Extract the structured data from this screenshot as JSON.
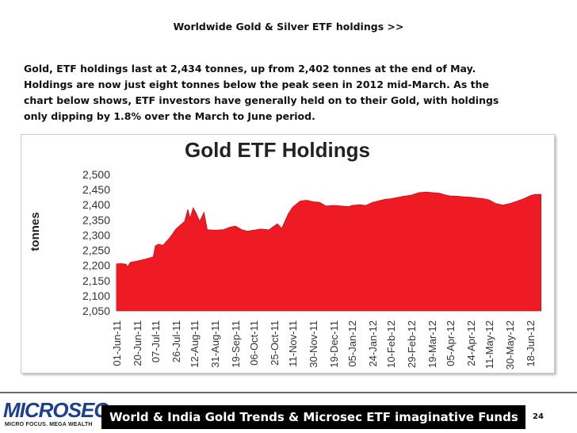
{
  "header": {
    "title": "Worldwide Gold & Silver ETF holdings >>"
  },
  "body": {
    "lines": [
      "Gold, ETF holdings last at 2,434 tonnes, up from 2,402 tonnes at the end of May.",
      "Holdings are now just eight tonnes below the peak seen in 2012 mid-March. As the",
      "chart below shows, ETF investors have generally held on to their Gold, with holdings",
      "only dipping by 1.8% over the March to June period."
    ]
  },
  "footer": {
    "logo_text": "MICROSEC",
    "logo_tagline": "MICRO FOCUS. MEGA WEALTH",
    "title": "World & India Gold Trends & Microsec ETF imaginative Funds",
    "page_number": "24"
  },
  "colors": {
    "fill": "#ee1b24",
    "footer_bg": "#000000",
    "logo": "#1d3f8f"
  },
  "chart_data": {
    "type": "area",
    "title": "Gold ETF Holdings",
    "xlabel": "",
    "ylabel": "tonnes",
    "ylim": [
      2050,
      2500
    ],
    "yticks": [
      "2,500",
      "2,450",
      "2,400",
      "2,350",
      "2,300",
      "2,250",
      "2,200",
      "2,150",
      "2,100",
      "2,050"
    ],
    "xticks": [
      "01-Jun-11",
      "20-Jun-11",
      "07-Jul-11",
      "26-Jul-11",
      "12-Aug-11",
      "31-Aug-11",
      "19-Sep-11",
      "06-Oct-11",
      "25-Oct-11",
      "11-Nov-11",
      "30-Nov-11",
      "19-Dec-11",
      "05-Jan-12",
      "24-Jan-12",
      "10-Feb-12",
      "29-Feb-12",
      "19-Mar-12",
      "05-Apr-12",
      "24-Apr-12",
      "11-May-12",
      "30-May-12",
      "18-Jun-12"
    ],
    "grid": false,
    "points": [
      [
        "01-Jun-11",
        2205
      ],
      [
        "05-Jun-11",
        2206
      ],
      [
        "10-Jun-11",
        2204
      ],
      [
        "11-Jun-11",
        2195
      ],
      [
        "14-Jun-11",
        2210
      ],
      [
        "20-Jun-11",
        2214
      ],
      [
        "27-Jun-11",
        2220
      ],
      [
        "05-Jul-11",
        2228
      ],
      [
        "07-Jul-11",
        2265
      ],
      [
        "10-Jul-11",
        2270
      ],
      [
        "14-Jul-11",
        2266
      ],
      [
        "20-Jul-11",
        2290
      ],
      [
        "26-Jul-11",
        2320
      ],
      [
        "03-Aug-11",
        2345
      ],
      [
        "06-Aug-11",
        2385
      ],
      [
        "08-Aug-11",
        2355
      ],
      [
        "11-Aug-11",
        2390
      ],
      [
        "14-Aug-11",
        2370
      ],
      [
        "17-Aug-11",
        2345
      ],
      [
        "21-Aug-11",
        2375
      ],
      [
        "24-Aug-11",
        2318
      ],
      [
        "31-Aug-11",
        2316
      ],
      [
        "08-Sep-11",
        2318
      ],
      [
        "14-Sep-11",
        2326
      ],
      [
        "19-Sep-11",
        2330
      ],
      [
        "25-Sep-11",
        2318
      ],
      [
        "30-Sep-11",
        2313
      ],
      [
        "06-Oct-11",
        2316
      ],
      [
        "13-Oct-11",
        2320
      ],
      [
        "20-Oct-11",
        2317
      ],
      [
        "25-Oct-11",
        2330
      ],
      [
        "28-Oct-11",
        2337
      ],
      [
        "01-Nov-11",
        2322
      ],
      [
        "07-Nov-11",
        2370
      ],
      [
        "11-Nov-11",
        2392
      ],
      [
        "18-Nov-11",
        2412
      ],
      [
        "24-Nov-11",
        2415
      ],
      [
        "30-Nov-11",
        2410
      ],
      [
        "06-Dec-11",
        2408
      ],
      [
        "12-Dec-11",
        2396
      ],
      [
        "19-Dec-11",
        2398
      ],
      [
        "26-Dec-11",
        2396
      ],
      [
        "02-Jan-12",
        2394
      ],
      [
        "05-Jan-12",
        2398
      ],
      [
        "12-Jan-12",
        2400
      ],
      [
        "18-Jan-12",
        2398
      ],
      [
        "24-Jan-12",
        2408
      ],
      [
        "31-Jan-12",
        2414
      ],
      [
        "05-Feb-12",
        2418
      ],
      [
        "10-Feb-12",
        2420
      ],
      [
        "16-Feb-12",
        2424
      ],
      [
        "22-Feb-12",
        2428
      ],
      [
        "29-Feb-12",
        2432
      ],
      [
        "07-Mar-12",
        2440
      ],
      [
        "14-Mar-12",
        2442
      ],
      [
        "19-Mar-12",
        2440
      ],
      [
        "26-Mar-12",
        2438
      ],
      [
        "31-Mar-12",
        2433
      ],
      [
        "05-Apr-12",
        2429
      ],
      [
        "12-Apr-12",
        2428
      ],
      [
        "18-Apr-12",
        2426
      ],
      [
        "24-Apr-12",
        2425
      ],
      [
        "30-Apr-12",
        2422
      ],
      [
        "06-May-12",
        2420
      ],
      [
        "11-May-12",
        2416
      ],
      [
        "17-May-12",
        2404
      ],
      [
        "24-May-12",
        2399
      ],
      [
        "30-May-12",
        2404
      ],
      [
        "06-Jun-12",
        2412
      ],
      [
        "12-Jun-12",
        2420
      ],
      [
        "18-Jun-12",
        2430
      ],
      [
        "22-Jun-12",
        2434
      ],
      [
        "28-Jun-12",
        2434
      ]
    ]
  }
}
